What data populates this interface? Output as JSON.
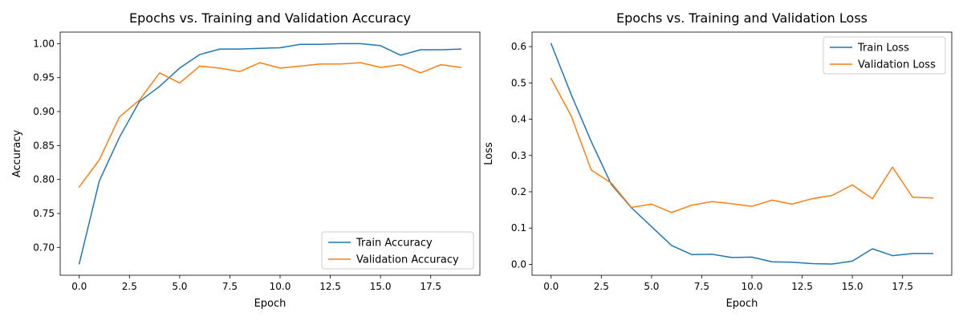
{
  "chart_data": [
    {
      "type": "line",
      "title": "Epochs vs. Training and Validation Accuracy",
      "xlabel": "Epoch",
      "ylabel": "Accuracy",
      "xlim": [
        -0.95,
        19.95
      ],
      "ylim": [
        0.659,
        1.017
      ],
      "xticks": [
        0,
        2.5,
        5,
        7.5,
        10,
        12.5,
        15,
        17.5
      ],
      "xtick_labels": [
        "0.0",
        "2.5",
        "5.0",
        "7.5",
        "10.0",
        "12.5",
        "15.0",
        "17.5"
      ],
      "yticks": [
        0.7,
        0.75,
        0.8,
        0.85,
        0.9,
        0.95,
        1.0
      ],
      "ytick_labels": [
        "0.70",
        "0.75",
        "0.80",
        "0.85",
        "0.90",
        "0.95",
        "1.00"
      ],
      "grid": false,
      "legend_loc": "lower-right",
      "x": [
        0,
        1,
        2,
        3,
        4,
        5,
        6,
        7,
        8,
        9,
        10,
        11,
        12,
        13,
        14,
        15,
        16,
        17,
        18,
        19
      ],
      "series": [
        {
          "name": "Train Accuracy",
          "color": "#1f77b4",
          "values": [
            0.676,
            0.798,
            0.862,
            0.915,
            0.937,
            0.964,
            0.984,
            0.992,
            0.992,
            0.993,
            0.994,
            0.999,
            0.999,
            1.0,
            1.0,
            0.997,
            0.983,
            0.991,
            0.991,
            0.992
          ]
        },
        {
          "name": "Validation Accuracy",
          "color": "#ff7f0e",
          "values": [
            0.789,
            0.829,
            0.892,
            0.917,
            0.957,
            0.942,
            0.967,
            0.964,
            0.959,
            0.972,
            0.964,
            0.967,
            0.97,
            0.97,
            0.972,
            0.965,
            0.969,
            0.957,
            0.969,
            0.965
          ]
        }
      ]
    },
    {
      "type": "line",
      "title": "Epochs vs. Training and Validation Loss",
      "xlabel": "Epoch",
      "ylabel": "Loss",
      "xlim": [
        -0.95,
        19.95
      ],
      "ylim": [
        -0.03,
        0.64
      ],
      "xticks": [
        0,
        2.5,
        5,
        7.5,
        10,
        12.5,
        15,
        17.5
      ],
      "xtick_labels": [
        "0.0",
        "2.5",
        "5.0",
        "7.5",
        "10.0",
        "12.5",
        "15.0",
        "17.5"
      ],
      "yticks": [
        0.0,
        0.1,
        0.2,
        0.3,
        0.4,
        0.5,
        0.6
      ],
      "ytick_labels": [
        "0.0",
        "0.1",
        "0.2",
        "0.3",
        "0.4",
        "0.5",
        "0.6"
      ],
      "grid": false,
      "legend_loc": "upper-right",
      "x": [
        0,
        1,
        2,
        3,
        4,
        5,
        6,
        7,
        8,
        9,
        10,
        11,
        12,
        13,
        14,
        15,
        16,
        17,
        18,
        19
      ],
      "series": [
        {
          "name": "Train Loss",
          "color": "#1f77b4",
          "values": [
            0.608,
            0.468,
            0.338,
            0.22,
            0.156,
            0.104,
            0.052,
            0.027,
            0.028,
            0.019,
            0.02,
            0.007,
            0.006,
            0.002,
            0.001,
            0.009,
            0.043,
            0.024,
            0.03,
            0.03
          ]
        },
        {
          "name": "Validation Loss",
          "color": "#ff7f0e",
          "values": [
            0.512,
            0.409,
            0.26,
            0.224,
            0.157,
            0.166,
            0.143,
            0.163,
            0.173,
            0.167,
            0.16,
            0.177,
            0.166,
            0.181,
            0.19,
            0.219,
            0.181,
            0.268,
            0.185,
            0.183
          ]
        }
      ]
    }
  ]
}
